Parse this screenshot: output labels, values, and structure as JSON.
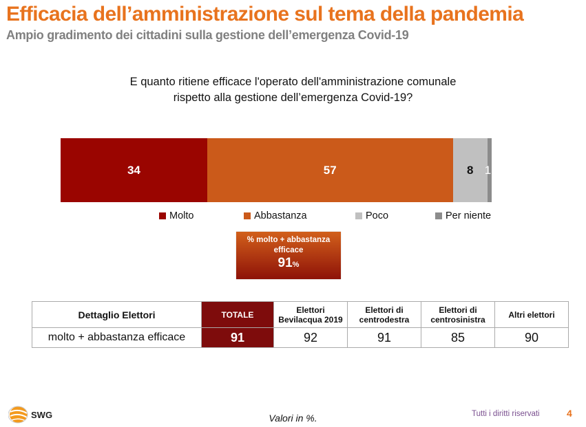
{
  "header": {
    "title": "Efficacia dell’amministrazione sul tema della pandemia",
    "subtitle": "Ampio gradimento dei cittadini sulla gestione dell’emergenza Covid-19"
  },
  "chart_data": {
    "type": "bar",
    "orientation": "horizontal-stacked-100",
    "title": "E quanto ritiene efficace l'operato dell'amministrazione comunale rispetto alla gestione dell’emergenza Covid-19?",
    "title_lines": [
      "E quanto ritiene efficace l'operato dell'amministrazione comunale",
      "rispetto alla gestione dell’emergenza Covid-19?"
    ],
    "categories": [
      "Totale"
    ],
    "series": [
      {
        "name": "Molto",
        "values": [
          34
        ],
        "color": "#9A0500",
        "label_color": "#ffffff"
      },
      {
        "name": "Abbastanza",
        "values": [
          57
        ],
        "color": "#CB5A1A",
        "label_color": "#ffffff"
      },
      {
        "name": "Poco",
        "values": [
          8
        ],
        "color": "#C0C0C0",
        "label_color": "#111111"
      },
      {
        "name": "Per niente",
        "values": [
          1
        ],
        "color": "#8C8C8C",
        "label_color": "#ffffff"
      }
    ],
    "xlim": [
      0,
      100
    ],
    "legend_position": "bottom",
    "grid": false
  },
  "callout": {
    "label_line1": "% molto + abbastanza",
    "label_line2": "efficace",
    "value": "91",
    "unit": "%"
  },
  "table": {
    "headers": [
      "Dettaglio Elettori",
      "TOTALE",
      "Elettori Bevilacqua 2019",
      "Elettori di centrodestra",
      "Elettori di centrosinistra",
      "Altri elettori"
    ],
    "header_lines": [
      [
        "Dettaglio Elettori"
      ],
      [
        "TOTALE"
      ],
      [
        "Elettori",
        "Bevilacqua 2019"
      ],
      [
        "Elettori di",
        "centrodestra"
      ],
      [
        "Elettori di",
        "centrosinistra"
      ],
      [
        "Altri elettori"
      ]
    ],
    "rows": [
      {
        "label": "molto + abbastanza efficace",
        "values": [
          "91",
          "92",
          "91",
          "85",
          "90"
        ]
      }
    ]
  },
  "footer": {
    "logo_text": "SWG",
    "note": "Valori in %.",
    "rights": "Tutti i diritti riservati",
    "page_number": "4",
    "accent": "#E8731E"
  }
}
